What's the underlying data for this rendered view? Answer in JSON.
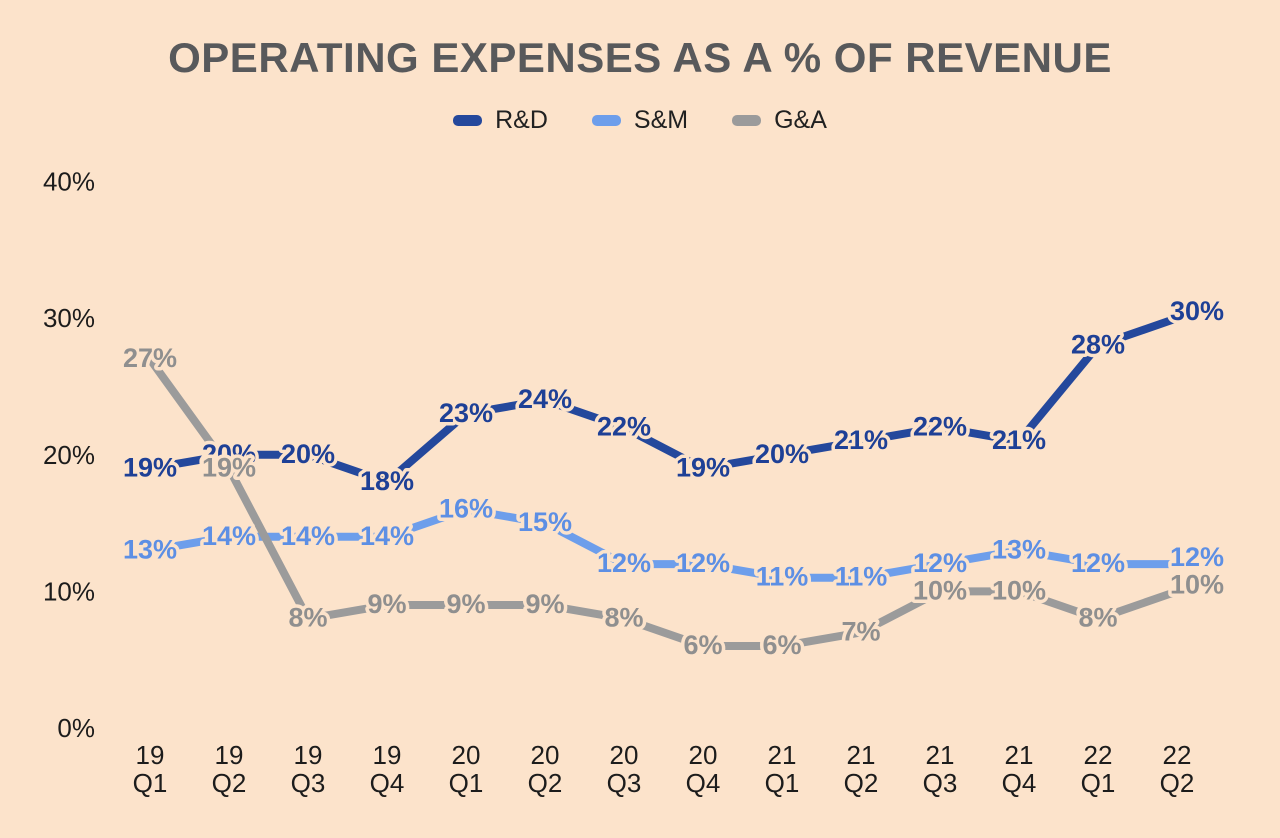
{
  "colors": {
    "background": "#fce3cb",
    "title_text": "#58595b",
    "axis_text": "#1c1c1c",
    "legend_text": "#212121",
    "label_halo": "#fce3cb"
  },
  "chart_data": {
    "type": "line",
    "title": "OPERATING EXPENSES AS A % OF REVENUE",
    "xlabel": "",
    "ylabel": "",
    "categories": [
      "19 Q1",
      "19 Q2",
      "19 Q3",
      "19 Q4",
      "20 Q1",
      "20 Q2",
      "20 Q3",
      "20 Q4",
      "21 Q1",
      "21 Q2",
      "21 Q3",
      "21 Q4",
      "22 Q1",
      "22 Q2"
    ],
    "series": [
      {
        "name": "R&D",
        "color": "#24489c",
        "label_color": "#1e4096",
        "values": [
          19,
          20,
          20,
          18,
          23,
          24,
          22,
          19,
          20,
          21,
          22,
          21,
          28,
          30
        ]
      },
      {
        "name": "S&M",
        "color": "#6d9eeb",
        "label_color": "#5d8fe4",
        "values": [
          13,
          14,
          14,
          14,
          16,
          15,
          12,
          12,
          11,
          11,
          12,
          13,
          12,
          12
        ]
      },
      {
        "name": "G&A",
        "color": "#9b9b9b",
        "label_color": "#8f8f8f",
        "values": [
          27,
          19,
          8,
          9,
          9,
          9,
          8,
          6,
          6,
          7,
          10,
          10,
          8,
          10
        ]
      }
    ],
    "data_labels": true,
    "label_suffix": "%",
    "y_ticks": [
      "0%",
      "10%",
      "20%",
      "30%",
      "40%"
    ],
    "y_tick_values": [
      0,
      10,
      20,
      30,
      40
    ],
    "ylim": [
      0,
      42
    ],
    "grid": false,
    "legend_position": "top"
  }
}
